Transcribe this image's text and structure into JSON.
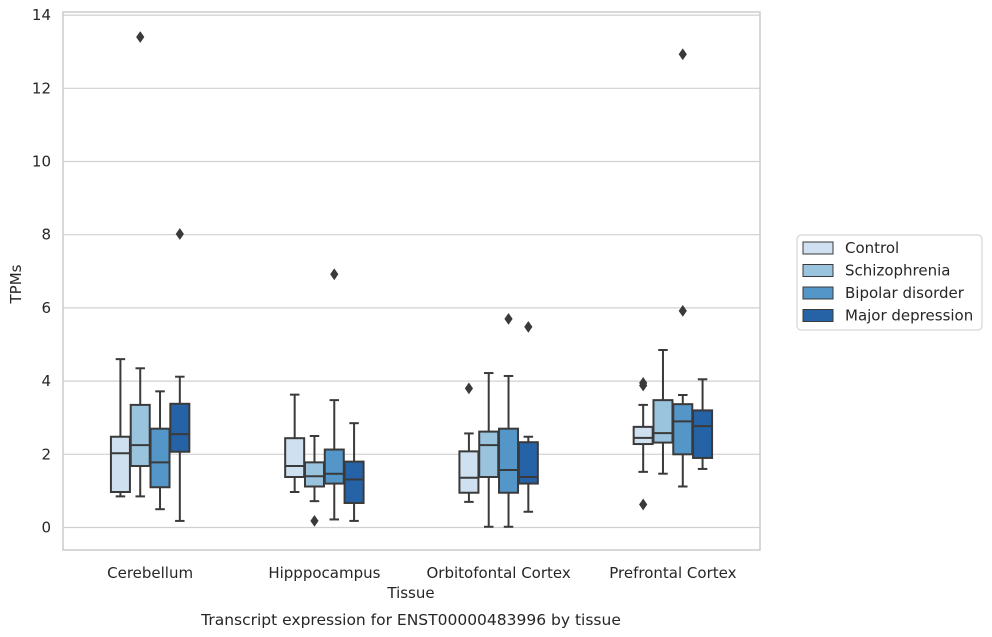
{
  "chart_data": {
    "type": "box",
    "title": "",
    "caption": "Transcript expression for ENST00000483996 by tissue",
    "xlabel": "Tissue",
    "ylabel": "TPMs",
    "ylim": [
      -0.6,
      14.1
    ],
    "yticks": [
      "0",
      "2",
      "4",
      "6",
      "8",
      "10",
      "12",
      "14"
    ],
    "grid": "horizontal",
    "legend_position": "right",
    "categories": [
      "Cerebellum",
      "Hipppocampus",
      "Orbitofontal Cortex",
      "Prefrontal Cortex"
    ],
    "series": [
      {
        "name": "Control",
        "color": "#cfe0f0",
        "boxes": [
          {
            "whisker_low": 0.85,
            "q1": 0.97,
            "median": 2.03,
            "q3": 2.48,
            "whisker_high": 4.6,
            "outliers": []
          },
          {
            "whisker_low": 0.97,
            "q1": 1.38,
            "median": 1.68,
            "q3": 2.44,
            "whisker_high": 3.63,
            "outliers": []
          },
          {
            "whisker_low": 0.7,
            "q1": 0.95,
            "median": 1.36,
            "q3": 2.08,
            "whisker_high": 2.57,
            "outliers": [
              3.8
            ]
          },
          {
            "whisker_low": 1.52,
            "q1": 2.28,
            "median": 2.45,
            "q3": 2.75,
            "whisker_high": 3.35,
            "outliers": [
              0.63,
              3.88,
              3.95
            ]
          }
        ]
      },
      {
        "name": "Schizophrenia",
        "color": "#9ac3de",
        "boxes": [
          {
            "whisker_low": 0.85,
            "q1": 1.68,
            "median": 2.25,
            "q3": 3.35,
            "whisker_high": 4.35,
            "outliers": [
              13.4
            ]
          },
          {
            "whisker_low": 0.72,
            "q1": 1.12,
            "median": 1.4,
            "q3": 1.78,
            "whisker_high": 2.5,
            "outliers": [
              0.18
            ]
          },
          {
            "whisker_low": 0.02,
            "q1": 1.38,
            "median": 2.25,
            "q3": 2.62,
            "whisker_high": 4.22,
            "outliers": []
          },
          {
            "whisker_low": 1.47,
            "q1": 2.32,
            "median": 2.58,
            "q3": 3.48,
            "whisker_high": 4.85,
            "outliers": []
          }
        ]
      },
      {
        "name": "Bipolar disorder",
        "color": "#5596c8",
        "boxes": [
          {
            "whisker_low": 0.5,
            "q1": 1.1,
            "median": 1.78,
            "q3": 2.7,
            "whisker_high": 3.72,
            "outliers": []
          },
          {
            "whisker_low": 0.22,
            "q1": 1.2,
            "median": 1.47,
            "q3": 2.13,
            "whisker_high": 3.48,
            "outliers": [
              6.92
            ]
          },
          {
            "whisker_low": 0.02,
            "q1": 0.95,
            "median": 1.57,
            "q3": 2.7,
            "whisker_high": 4.14,
            "outliers": [
              5.7
            ]
          },
          {
            "whisker_low": 1.12,
            "q1": 2.0,
            "median": 2.9,
            "q3": 3.37,
            "whisker_high": 3.62,
            "outliers": [
              5.92,
              12.93
            ]
          }
        ]
      },
      {
        "name": "Major depression",
        "color": "#2563a6",
        "boxes": [
          {
            "whisker_low": 0.18,
            "q1": 2.07,
            "median": 2.55,
            "q3": 3.38,
            "whisker_high": 4.12,
            "outliers": [
              8.02
            ]
          },
          {
            "whisker_low": 0.18,
            "q1": 0.67,
            "median": 1.31,
            "q3": 1.8,
            "whisker_high": 2.85,
            "outliers": []
          },
          {
            "whisker_low": 0.43,
            "q1": 1.2,
            "median": 1.38,
            "q3": 2.33,
            "whisker_high": 2.48,
            "outliers": [
              5.48
            ]
          },
          {
            "whisker_low": 1.6,
            "q1": 1.9,
            "median": 2.77,
            "q3": 3.2,
            "whisker_high": 4.05,
            "outliers": []
          }
        ]
      }
    ]
  }
}
